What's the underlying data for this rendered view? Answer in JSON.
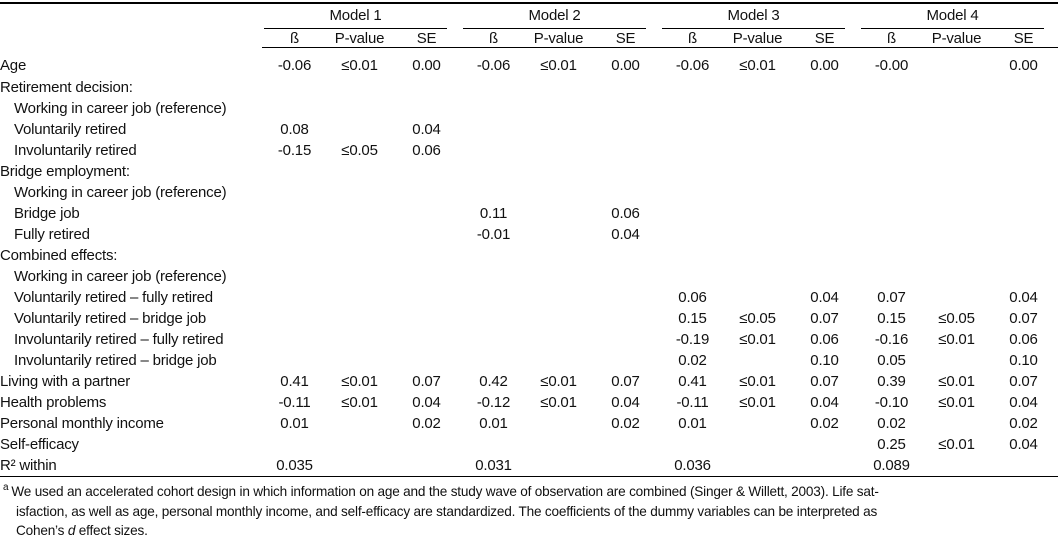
{
  "table": {
    "models": [
      "Model 1",
      "Model 2",
      "Model 3",
      "Model 4"
    ],
    "subheaders": [
      "ß",
      "P-value",
      "SE"
    ],
    "rows": [
      {
        "label": "Age",
        "indent": 0,
        "cells": [
          "-0.06",
          "≤0.01",
          "0.00",
          "-0.06",
          "≤0.01",
          "0.00",
          "-0.06",
          "≤0.01",
          "0.00",
          "-0.00",
          "",
          "0.00"
        ]
      },
      {
        "label": "Retirement decision:",
        "indent": 0,
        "cells": [
          "",
          "",
          "",
          "",
          "",
          "",
          "",
          "",
          "",
          "",
          "",
          ""
        ]
      },
      {
        "label": "Working in career job (reference)",
        "indent": 1,
        "cells": [
          "",
          "",
          "",
          "",
          "",
          "",
          "",
          "",
          "",
          "",
          "",
          ""
        ]
      },
      {
        "label": "Voluntarily retired",
        "indent": 1,
        "cells": [
          "0.08",
          "",
          "0.04",
          "",
          "",
          "",
          "",
          "",
          "",
          "",
          "",
          ""
        ]
      },
      {
        "label": "Involuntarily retired",
        "indent": 1,
        "cells": [
          "-0.15",
          "≤0.05",
          "0.06",
          "",
          "",
          "",
          "",
          "",
          "",
          "",
          "",
          ""
        ]
      },
      {
        "label": "Bridge employment:",
        "indent": 0,
        "cells": [
          "",
          "",
          "",
          "",
          "",
          "",
          "",
          "",
          "",
          "",
          "",
          ""
        ]
      },
      {
        "label": "Working in career job (reference)",
        "indent": 1,
        "cells": [
          "",
          "",
          "",
          "",
          "",
          "",
          "",
          "",
          "",
          "",
          "",
          ""
        ]
      },
      {
        "label": "Bridge job",
        "indent": 1,
        "cells": [
          "",
          "",
          "",
          "0.11",
          "",
          "0.06",
          "",
          "",
          "",
          "",
          "",
          ""
        ]
      },
      {
        "label": "Fully retired",
        "indent": 1,
        "cells": [
          "",
          "",
          "",
          "-0.01",
          "",
          "0.04",
          "",
          "",
          "",
          "",
          "",
          ""
        ]
      },
      {
        "label": "Combined effects:",
        "indent": 0,
        "cells": [
          "",
          "",
          "",
          "",
          "",
          "",
          "",
          "",
          "",
          "",
          "",
          ""
        ]
      },
      {
        "label": "Working in career job (reference)",
        "indent": 1,
        "cells": [
          "",
          "",
          "",
          "",
          "",
          "",
          "",
          "",
          "",
          "",
          "",
          ""
        ]
      },
      {
        "label": "Voluntarily retired – fully retired",
        "indent": 1,
        "cells": [
          "",
          "",
          "",
          "",
          "",
          "",
          "0.06",
          "",
          "0.04",
          "0.07",
          "",
          "0.04"
        ]
      },
      {
        "label": "Voluntarily retired – bridge job",
        "indent": 1,
        "cells": [
          "",
          "",
          "",
          "",
          "",
          "",
          "0.15",
          "≤0.05",
          "0.07",
          "0.15",
          "≤0.05",
          "0.07"
        ]
      },
      {
        "label": "Involuntarily retired – fully retired",
        "indent": 1,
        "cells": [
          "",
          "",
          "",
          "",
          "",
          "",
          "-0.19",
          "≤0.01",
          "0.06",
          "-0.16",
          "≤0.01",
          "0.06"
        ]
      },
      {
        "label": "Involuntarily retired – bridge job",
        "indent": 1,
        "cells": [
          "",
          "",
          "",
          "",
          "",
          "",
          "0.02",
          "",
          "0.10",
          "0.05",
          "",
          "0.10"
        ]
      },
      {
        "label": "Living with a partner",
        "indent": 0,
        "cells": [
          "0.41",
          "≤0.01",
          "0.07",
          "0.42",
          "≤0.01",
          "0.07",
          "0.41",
          "≤0.01",
          "0.07",
          "0.39",
          "≤0.01",
          "0.07"
        ]
      },
      {
        "label": "Health problems",
        "indent": 0,
        "cells": [
          "-0.11",
          "≤0.01",
          "0.04",
          "-0.12",
          "≤0.01",
          "0.04",
          "-0.11",
          "≤0.01",
          "0.04",
          "-0.10",
          "≤0.01",
          "0.04"
        ]
      },
      {
        "label": "Personal monthly income",
        "indent": 0,
        "cells": [
          "0.01",
          "",
          "0.02",
          "0.01",
          "",
          "0.02",
          "0.01",
          "",
          "0.02",
          "0.02",
          "",
          "0.02"
        ]
      },
      {
        "label": "Self-efficacy",
        "indent": 0,
        "cells": [
          "",
          "",
          "",
          "",
          "",
          "",
          "",
          "",
          "",
          "0.25",
          "≤0.01",
          "0.04"
        ]
      },
      {
        "label": "R² within",
        "indent": 0,
        "cells": [
          "0.035",
          "",
          "",
          "0.031",
          "",
          "",
          "0.036",
          "",
          "",
          "0.089",
          "",
          ""
        ]
      }
    ]
  },
  "footnote": {
    "marker": "a",
    "line1": "We used an accelerated cohort design in which information on age and the study wave of observation are combined (Singer & Willett, 2003). Life sat-",
    "line2": "isfaction, as well as age, personal monthly income, and self-efficacy are standardized. The coefficients of the dummy variables can be interpreted as",
    "line3_pre": "Cohen’s ",
    "line3_italic": "d",
    "line3_post": " effect sizes."
  }
}
